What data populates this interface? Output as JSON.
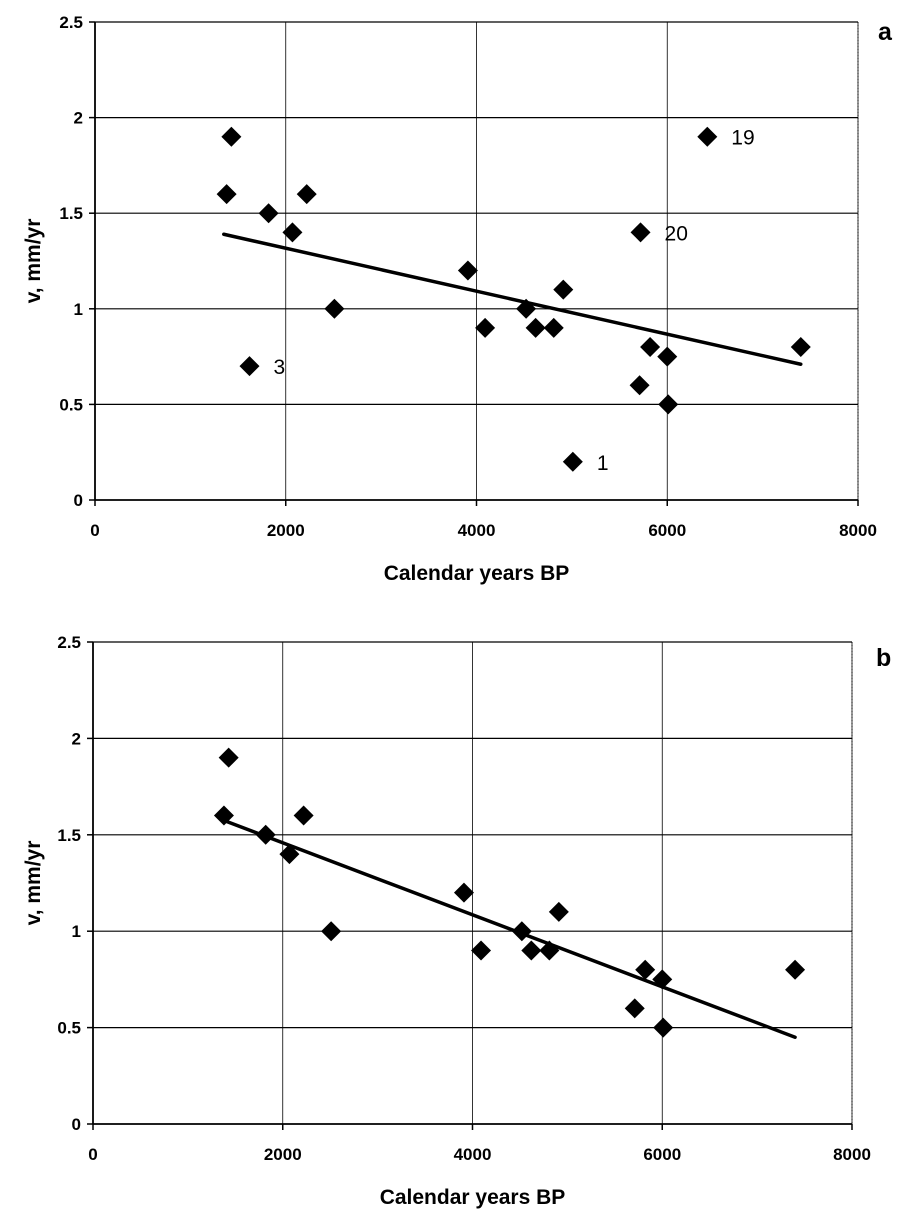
{
  "chart_data": [
    {
      "type": "scatter",
      "panel": "a",
      "xlabel": "Calendar years BP",
      "ylabel": "v, mm/yr",
      "xlim": [
        0,
        8000
      ],
      "ylim": [
        0,
        2.5
      ],
      "xticks": [
        "0",
        "2000",
        "4000",
        "6000",
        "8000"
      ],
      "yticks": [
        "0",
        "0.5",
        "1",
        "1.5",
        "2",
        "2.5"
      ],
      "grid": true,
      "points": [
        {
          "x": 1380,
          "y": 1.6
        },
        {
          "x": 1430,
          "y": 1.9
        },
        {
          "x": 1620,
          "y": 0.7,
          "label": "3"
        },
        {
          "x": 1820,
          "y": 1.5
        },
        {
          "x": 2070,
          "y": 1.4
        },
        {
          "x": 2220,
          "y": 1.6
        },
        {
          "x": 2510,
          "y": 1.0
        },
        {
          "x": 3910,
          "y": 1.2
        },
        {
          "x": 4090,
          "y": 0.9
        },
        {
          "x": 4520,
          "y": 1.0
        },
        {
          "x": 4620,
          "y": 0.9
        },
        {
          "x": 4810,
          "y": 0.9
        },
        {
          "x": 4910,
          "y": 1.1
        },
        {
          "x": 5010,
          "y": 0.2,
          "label": "1"
        },
        {
          "x": 5710,
          "y": 0.6
        },
        {
          "x": 5720,
          "y": 1.4,
          "label": "20"
        },
        {
          "x": 5820,
          "y": 0.8
        },
        {
          "x": 6000,
          "y": 0.75
        },
        {
          "x": 6010,
          "y": 0.5
        },
        {
          "x": 6420,
          "y": 1.9,
          "label": "19"
        },
        {
          "x": 7400,
          "y": 0.8
        }
      ],
      "trendline": {
        "x": [
          1350,
          7400
        ],
        "y": [
          1.39,
          0.71
        ]
      }
    },
    {
      "type": "scatter",
      "panel": "b",
      "xlabel": "Calendar years BP",
      "ylabel": "v, mm/yr",
      "xlim": [
        0,
        8000
      ],
      "ylim": [
        0,
        2.5
      ],
      "xticks": [
        "0",
        "2000",
        "4000",
        "6000",
        "8000"
      ],
      "yticks": [
        "0",
        "0.5",
        "1",
        "1.5",
        "2",
        "2.5"
      ],
      "grid": true,
      "points": [
        {
          "x": 1380,
          "y": 1.6
        },
        {
          "x": 1430,
          "y": 1.9
        },
        {
          "x": 1820,
          "y": 1.5
        },
        {
          "x": 2070,
          "y": 1.4
        },
        {
          "x": 2220,
          "y": 1.6
        },
        {
          "x": 2510,
          "y": 1.0
        },
        {
          "x": 3910,
          "y": 1.2
        },
        {
          "x": 4090,
          "y": 0.9
        },
        {
          "x": 4520,
          "y": 1.0
        },
        {
          "x": 4620,
          "y": 0.9
        },
        {
          "x": 4810,
          "y": 0.9
        },
        {
          "x": 4910,
          "y": 1.1
        },
        {
          "x": 5710,
          "y": 0.6
        },
        {
          "x": 5820,
          "y": 0.8
        },
        {
          "x": 6000,
          "y": 0.75
        },
        {
          "x": 6010,
          "y": 0.5
        },
        {
          "x": 7400,
          "y": 0.8
        }
      ],
      "trendline": {
        "x": [
          1350,
          7400
        ],
        "y": [
          1.58,
          0.45
        ]
      }
    }
  ]
}
